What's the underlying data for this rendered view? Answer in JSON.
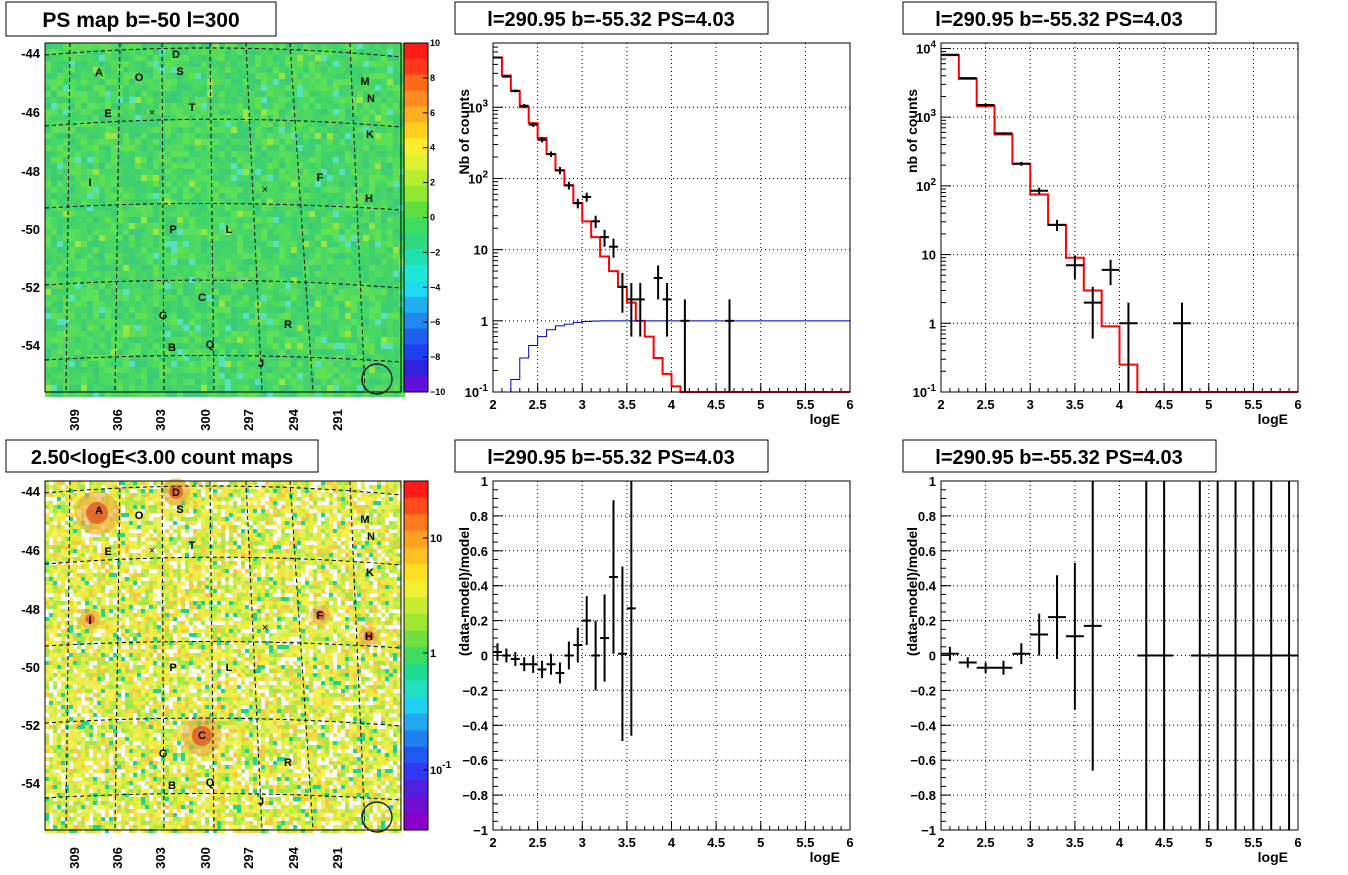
{
  "colors": {
    "model": "#ff0000",
    "reference": "#0000bb",
    "data": "#000000",
    "grid": "#000000",
    "frame": "#000000"
  },
  "sources": {
    "labels": [
      "A",
      "B",
      "C",
      "D",
      "E",
      "F",
      "G",
      "H",
      "I",
      "J",
      "K",
      "L",
      "M",
      "N",
      "O",
      "P",
      "Q",
      "R",
      "S",
      "T"
    ],
    "crosses": 2,
    "circle_marker": "open-circle near l=291, b=-54.9"
  },
  "chart_data": [
    {
      "type": "heatmap",
      "title": "PS map b=-50 l=300",
      "xlabel": "",
      "ylabel": "",
      "x_ticks": [
        "309",
        "306",
        "303",
        "300",
        "297",
        "294",
        "291"
      ],
      "y_ticks": [
        "-44",
        "-46",
        "-48",
        "-50",
        "-52",
        "-54"
      ],
      "colorbar": {
        "scale": "linear",
        "range": [
          -10,
          10
        ],
        "ticks": [
          "10",
          "8",
          "6",
          "4",
          "2",
          "0",
          "−2",
          "−4",
          "−6",
          "−8",
          "−10"
        ]
      },
      "grid": true
    },
    {
      "type": "line",
      "title": "l=290.95 b=-55.32 PS=4.03",
      "xlabel": "logE",
      "ylabel": "Nb of counts",
      "xlim": [
        2,
        6
      ],
      "ylim": [
        0.1,
        8000
      ],
      "yscale": "log",
      "x_ticks": [
        "2",
        "2.5",
        "3",
        "3.5",
        "4",
        "4.5",
        "5",
        "5.5",
        "6"
      ],
      "y_ticks": [
        "10^-1",
        "1",
        "10",
        "10^2",
        "10^3"
      ],
      "grid": true,
      "series": [
        {
          "style": "step",
          "color": "red",
          "edges": [
            2.0,
            2.1,
            2.2,
            2.3,
            2.4,
            2.5,
            2.6,
            2.7,
            2.8,
            2.9,
            3.0,
            3.1,
            3.2,
            3.3,
            3.4,
            3.5,
            3.6,
            3.7,
            3.8,
            3.9,
            4.0,
            4.1,
            4.2,
            6.0
          ],
          "values": [
            5000,
            2800,
            1700,
            1000,
            600,
            370,
            220,
            130,
            80,
            45,
            25,
            15,
            8,
            5,
            3,
            1.8,
            1.0,
            0.6,
            0.3,
            0.18,
            0.12,
            0.09,
            0.05
          ]
        },
        {
          "style": "step",
          "color": "blue",
          "edges": [
            2.0,
            2.1,
            2.2,
            2.3,
            2.4,
            2.5,
            2.6,
            2.7,
            2.8,
            2.9,
            3.0,
            3.1,
            3.2,
            6.0
          ],
          "values": [
            0.05,
            0.09,
            0.15,
            0.3,
            0.45,
            0.6,
            0.75,
            0.85,
            0.9,
            0.95,
            0.98,
            0.99,
            1.0
          ]
        },
        {
          "style": "errorbar",
          "color": "black",
          "points": [
            {
              "x": 2.05,
              "y": 5000,
              "lo": 4860,
              "hi": 5140
            },
            {
              "x": 2.15,
              "y": 2700,
              "lo": 2600,
              "hi": 2800
            },
            {
              "x": 2.25,
              "y": 1700,
              "lo": 1620,
              "hi": 1780
            },
            {
              "x": 2.35,
              "y": 1050,
              "lo": 990,
              "hi": 1110
            },
            {
              "x": 2.45,
              "y": 570,
              "lo": 530,
              "hi": 610
            },
            {
              "x": 2.55,
              "y": 350,
              "lo": 320,
              "hi": 380
            },
            {
              "x": 2.65,
              "y": 220,
              "lo": 200,
              "hi": 240
            },
            {
              "x": 2.75,
              "y": 130,
              "lo": 115,
              "hi": 145
            },
            {
              "x": 2.85,
              "y": 80,
              "lo": 70,
              "hi": 90
            },
            {
              "x": 2.95,
              "y": 45,
              "lo": 38,
              "hi": 52
            },
            {
              "x": 3.05,
              "y": 55,
              "lo": 47,
              "hi": 63
            },
            {
              "x": 3.15,
              "y": 25,
              "lo": 20,
              "hi": 30
            },
            {
              "x": 3.25,
              "y": 15,
              "lo": 11,
              "hi": 19
            },
            {
              "x": 3.35,
              "y": 11,
              "lo": 7.7,
              "hi": 14.3
            },
            {
              "x": 3.45,
              "y": 3,
              "lo": 1.3,
              "hi": 4.7
            },
            {
              "x": 3.55,
              "y": 2,
              "lo": 0.6,
              "hi": 3.4
            },
            {
              "x": 3.65,
              "y": 2,
              "lo": 0.6,
              "hi": 3.4
            },
            {
              "x": 3.85,
              "y": 4,
              "lo": 2,
              "hi": 6
            },
            {
              "x": 3.95,
              "y": 2,
              "lo": 0.6,
              "hi": 3.4
            },
            {
              "x": 4.15,
              "y": 1,
              "lo": 0.1,
              "hi": 2
            },
            {
              "x": 4.65,
              "y": 1,
              "lo": 0.1,
              "hi": 2
            }
          ]
        }
      ]
    },
    {
      "type": "line",
      "title": "l=290.95 b=-55.32 PS=4.03",
      "xlabel": "logE",
      "ylabel": "nb of counts",
      "xlim": [
        2,
        6
      ],
      "ylim": [
        0.1,
        12000
      ],
      "yscale": "log",
      "x_ticks": [
        "2",
        "2.5",
        "3",
        "3.5",
        "4",
        "4.5",
        "5",
        "5.5",
        "6"
      ],
      "y_ticks": [
        "10^-1",
        "1",
        "10",
        "10^2",
        "10^3",
        "10^4"
      ],
      "grid": true,
      "series": [
        {
          "style": "step",
          "color": "red",
          "edges": [
            2.0,
            2.2,
            2.4,
            2.6,
            2.8,
            3.0,
            3.2,
            3.4,
            3.6,
            3.8,
            4.0,
            4.2,
            6.0
          ],
          "values": [
            8000,
            3600,
            1450,
            560,
            210,
            75,
            27,
            9,
            3,
            0.9,
            0.25,
            0.05
          ]
        },
        {
          "style": "errorbar",
          "color": "black",
          "points": [
            {
              "x": 2.1,
              "y": 8100,
              "lo": 7920,
              "hi": 8280
            },
            {
              "x": 2.3,
              "y": 3700,
              "lo": 3580,
              "hi": 3820
            },
            {
              "x": 2.5,
              "y": 1500,
              "lo": 1420,
              "hi": 1580
            },
            {
              "x": 2.7,
              "y": 580,
              "lo": 555,
              "hi": 605
            },
            {
              "x": 2.9,
              "y": 210,
              "lo": 196,
              "hi": 224
            },
            {
              "x": 3.1,
              "y": 85,
              "lo": 76,
              "hi": 94
            },
            {
              "x": 3.3,
              "y": 27,
              "lo": 22,
              "hi": 32
            },
            {
              "x": 3.5,
              "y": 7,
              "lo": 4.4,
              "hi": 9.6
            },
            {
              "x": 3.7,
              "y": 2,
              "lo": 0.6,
              "hi": 3.4
            },
            {
              "x": 3.9,
              "y": 6,
              "lo": 3.6,
              "hi": 8.4
            },
            {
              "x": 4.1,
              "y": 1,
              "lo": 0.1,
              "hi": 2
            },
            {
              "x": 4.7,
              "y": 1,
              "lo": 0.1,
              "hi": 2
            }
          ]
        }
      ]
    },
    {
      "type": "heatmap",
      "title": "2.50<logE<3.00 count maps",
      "xlabel": "",
      "ylabel": "",
      "x_ticks": [
        "309",
        "306",
        "303",
        "300",
        "297",
        "294",
        "291"
      ],
      "y_ticks": [
        "-44",
        "-46",
        "-48",
        "-50",
        "-52",
        "-54"
      ],
      "colorbar": {
        "scale": "log",
        "ticks": [
          "10",
          "1",
          "10^-1"
        ]
      },
      "grid": true
    },
    {
      "type": "scatter",
      "title": "l=290.95 b=-55.32 PS=4.03",
      "xlabel": "logE",
      "ylabel": "(data-model)/model",
      "xlim": [
        2,
        6
      ],
      "ylim": [
        -1,
        1
      ],
      "x_ticks": [
        "2",
        "2.5",
        "3",
        "3.5",
        "4",
        "4.5",
        "5",
        "5.5",
        "6"
      ],
      "y_ticks": [
        "1",
        "0.8",
        "0.6",
        "0.4",
        "0.2",
        "0",
        "−0.2",
        "−0.4",
        "−0.6",
        "−0.8",
        "−1"
      ],
      "grid": true,
      "points": [
        {
          "x": 2.05,
          "y": 0.02,
          "err": 0.05
        },
        {
          "x": 2.15,
          "y": 0.0,
          "err": 0.04
        },
        {
          "x": 2.25,
          "y": -0.02,
          "err": 0.04
        },
        {
          "x": 2.35,
          "y": -0.05,
          "err": 0.04
        },
        {
          "x": 2.45,
          "y": -0.05,
          "err": 0.05
        },
        {
          "x": 2.55,
          "y": -0.08,
          "err": 0.05
        },
        {
          "x": 2.65,
          "y": -0.05,
          "err": 0.06
        },
        {
          "x": 2.75,
          "y": -0.1,
          "err": 0.06
        },
        {
          "x": 2.85,
          "y": 0.0,
          "err": 0.08
        },
        {
          "x": 2.95,
          "y": 0.06,
          "err": 0.1
        },
        {
          "x": 3.05,
          "y": 0.2,
          "err": 0.14
        },
        {
          "x": 3.15,
          "y": 0.0,
          "err": 0.2
        },
        {
          "x": 3.25,
          "y": 0.1,
          "err": 0.25
        },
        {
          "x": 3.35,
          "y": 0.45,
          "err": 0.44
        },
        {
          "x": 3.45,
          "y": 0.01,
          "err": 0.5
        },
        {
          "x": 3.55,
          "y": 0.27,
          "err": 0.73
        }
      ]
    },
    {
      "type": "scatter",
      "title": "l=290.95 b=-55.32 PS=4.03",
      "xlabel": "logE",
      "ylabel": "(data-model)/model",
      "xlim": [
        2,
        6
      ],
      "ylim": [
        -1,
        1
      ],
      "x_ticks": [
        "2",
        "2.5",
        "3",
        "3.5",
        "4",
        "4.5",
        "5",
        "5.5",
        "6"
      ],
      "y_ticks": [
        "1",
        "0.8",
        "0.6",
        "0.4",
        "0.2",
        "0",
        "−0.2",
        "−0.4",
        "−0.6",
        "−0.8",
        "−1"
      ],
      "grid": true,
      "points": [
        {
          "x": 2.1,
          "y": 0.01,
          "err": 0.04
        },
        {
          "x": 2.3,
          "y": -0.04,
          "err": 0.03
        },
        {
          "x": 2.5,
          "y": -0.07,
          "err": 0.03
        },
        {
          "x": 2.7,
          "y": -0.07,
          "err": 0.04
        },
        {
          "x": 2.9,
          "y": 0.01,
          "err": 0.06
        },
        {
          "x": 3.1,
          "y": 0.12,
          "err": 0.12
        },
        {
          "x": 3.3,
          "y": 0.22,
          "err": 0.24
        },
        {
          "x": 3.5,
          "y": 0.11,
          "err": 0.42
        },
        {
          "x": 3.7,
          "y": 0.17,
          "err": 0.83
        },
        {
          "x": 4.3,
          "y": 0,
          "err": 5
        },
        {
          "x": 4.5,
          "y": 0,
          "err": 5
        },
        {
          "x": 4.9,
          "y": 0,
          "err": 5
        },
        {
          "x": 5.1,
          "y": 0,
          "err": 5
        },
        {
          "x": 5.3,
          "y": 0,
          "err": 5
        },
        {
          "x": 5.5,
          "y": 0,
          "err": 5
        },
        {
          "x": 5.7,
          "y": 0,
          "err": 5
        },
        {
          "x": 5.9,
          "y": 0,
          "err": 5
        }
      ]
    }
  ]
}
